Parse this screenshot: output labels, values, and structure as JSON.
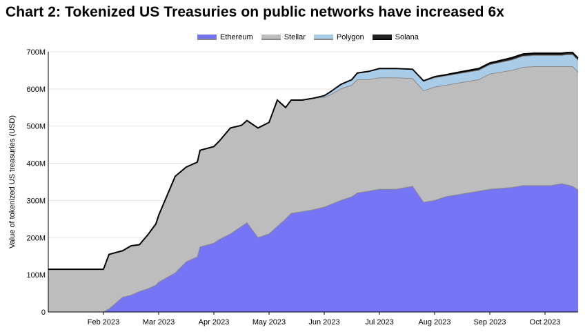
{
  "title": "Chart 2: Tokenized US Treasuries on public networks have increased 6x",
  "chart_data": {
    "type": "area",
    "stacked": true,
    "ylabel": "Value of tokenized US treasuries (USD)",
    "xlabel": "",
    "ylim": [
      0,
      700
    ],
    "yticks": [
      0,
      100,
      200,
      300,
      400,
      500,
      600,
      700
    ],
    "ytick_labels": [
      "0",
      "100M",
      "200M",
      "300M",
      "400M",
      "500M",
      "600M",
      "700M"
    ],
    "xlim": [
      0,
      9.6
    ],
    "xticks": [
      1,
      2,
      3,
      4,
      5,
      6,
      7,
      8,
      9
    ],
    "xtick_labels": [
      "Feb 2023",
      "Mar 2023",
      "Apr 2023",
      "May 2023",
      "Jun 2023",
      "Jul 2023",
      "Aug 2023",
      "Sep 2023",
      "Oct 2023"
    ],
    "x_unit_note": "months since Jan 1 2023",
    "grid": true,
    "legend_position": "top-center",
    "x": [
      0,
      0.5,
      1.0,
      1.1,
      1.35,
      1.5,
      1.65,
      1.8,
      1.95,
      2.0,
      2.3,
      2.5,
      2.7,
      2.75,
      3.0,
      3.1,
      3.3,
      3.5,
      3.6,
      3.8,
      4.0,
      4.15,
      4.3,
      4.4,
      4.6,
      4.8,
      5.0,
      5.1,
      5.3,
      5.5,
      5.6,
      5.8,
      6.0,
      6.3,
      6.6,
      6.8,
      7.0,
      7.2,
      7.4,
      7.8,
      8.0,
      8.4,
      8.6,
      8.8,
      9.1,
      9.3,
      9.4,
      9.5,
      9.6
    ],
    "series": [
      {
        "name": "Ethereum",
        "color": "#7575f5",
        "values": [
          0,
          0,
          0,
          8,
          40,
          45,
          55,
          62,
          72,
          80,
          105,
          135,
          148,
          175,
          185,
          195,
          210,
          230,
          240,
          200,
          210,
          230,
          250,
          265,
          270,
          275,
          282,
          288,
          300,
          310,
          320,
          325,
          330,
          330,
          338,
          295,
          300,
          310,
          315,
          325,
          330,
          335,
          340,
          340,
          340,
          345,
          342,
          338,
          328
        ]
      },
      {
        "name": "Stellar",
        "color": "#bdbdbd",
        "values": [
          115,
          115,
          115,
          147,
          125,
          133,
          126,
          145,
          165,
          180,
          260,
          255,
          255,
          260,
          260,
          265,
          285,
          272,
          275,
          295,
          300,
          340,
          300,
          305,
          300,
          300,
          295,
          295,
          300,
          300,
          305,
          300,
          300,
          300,
          290,
          300,
          305,
          300,
          300,
          300,
          310,
          315,
          318,
          320,
          320,
          315,
          318,
          322,
          317
        ]
      },
      {
        "name": "Polygon",
        "color": "#a9cde8",
        "values": [
          0,
          0,
          0,
          0,
          0,
          0,
          0,
          0,
          0,
          0,
          0,
          0,
          0,
          0,
          0,
          0,
          0,
          0,
          0,
          0,
          0,
          0,
          0,
          0,
          0,
          0,
          5,
          8,
          12,
          15,
          18,
          22,
          25,
          25,
          25,
          25,
          25,
          25,
          25,
          25,
          25,
          28,
          30,
          30,
          30,
          30,
          32,
          32,
          32
        ]
      },
      {
        "name": "Solana",
        "color": "#222222",
        "values": [
          0,
          0,
          0,
          0,
          0,
          0,
          0,
          0,
          0,
          0,
          0,
          0,
          0,
          0,
          0,
          0,
          0,
          0,
          0,
          0,
          0,
          0,
          0,
          0,
          0,
          0,
          0,
          0,
          0,
          0,
          0,
          0,
          0,
          0,
          0,
          2,
          3,
          3,
          4,
          5,
          5,
          6,
          6,
          6,
          6,
          6,
          6,
          6,
          6
        ]
      }
    ],
    "total_line_color": "#000000"
  }
}
